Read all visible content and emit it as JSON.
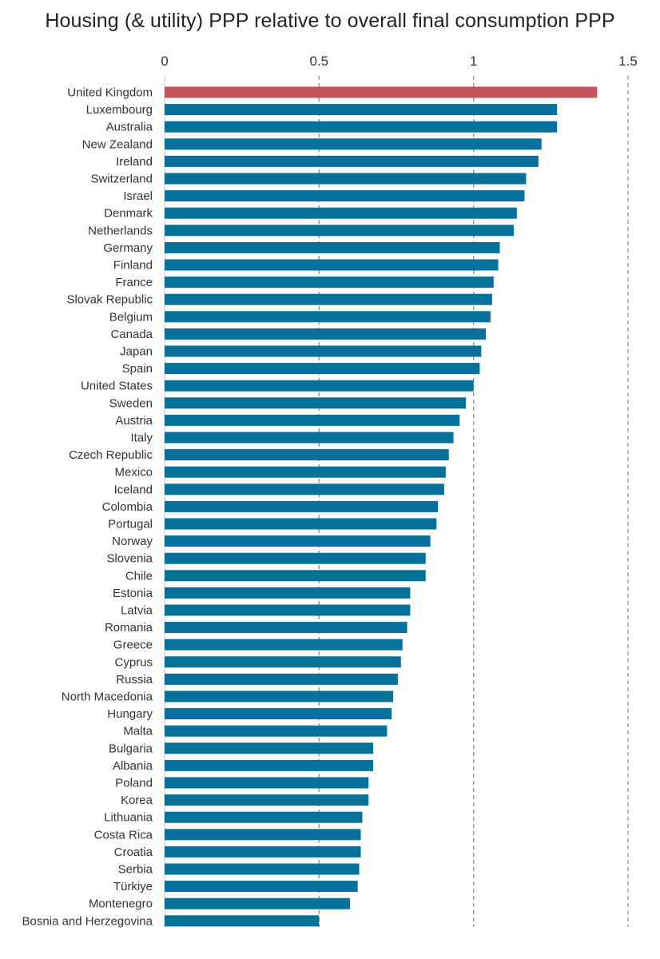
{
  "chart_data": {
    "type": "bar",
    "orientation": "horizontal",
    "title": "Housing (& utility) PPP relative to overall final consumption PPP",
    "xlabel": "",
    "ylabel": "",
    "xlim": [
      0,
      1.5
    ],
    "xticks": [
      0,
      0.5,
      1,
      1.5
    ],
    "xtick_labels": [
      "0",
      "0.5",
      "1",
      "1.5"
    ],
    "grid": "vertical dashed at 0.5, 1, 1.5",
    "colors": {
      "default": "#06719A",
      "highlight": "#C4555E"
    },
    "highlight_category": "United Kingdom",
    "categories": [
      "United Kingdom",
      "Luxembourg",
      "Australia",
      "New Zealand",
      "Ireland",
      "Switzerland",
      "Israel",
      "Denmark",
      "Netherlands",
      "Germany",
      "Finland",
      "France",
      "Slovak Republic",
      "Belgium",
      "Canada",
      "Japan",
      "Spain",
      "United States",
      "Sweden",
      "Austria",
      "Italy",
      "Czech Republic",
      "Mexico",
      "Iceland",
      "Colombia",
      "Portugal",
      "Norway",
      "Slovenia",
      "Chile",
      "Estonia",
      "Latvia",
      "Romania",
      "Greece",
      "Cyprus",
      "Russia",
      "North Macedonia",
      "Hungary",
      "Malta",
      "Bulgaria",
      "Albania",
      "Poland",
      "Korea",
      "Lithuania",
      "Costa Rica",
      "Croatia",
      "Serbia",
      "Türkiye",
      "Montenegro",
      "Bosnia and Herzegovina"
    ],
    "values": [
      1.4,
      1.27,
      1.27,
      1.22,
      1.21,
      1.17,
      1.165,
      1.14,
      1.13,
      1.085,
      1.08,
      1.065,
      1.06,
      1.055,
      1.04,
      1.025,
      1.02,
      1.0,
      0.975,
      0.955,
      0.935,
      0.92,
      0.91,
      0.905,
      0.885,
      0.88,
      0.86,
      0.845,
      0.845,
      0.795,
      0.795,
      0.785,
      0.77,
      0.765,
      0.755,
      0.74,
      0.735,
      0.72,
      0.675,
      0.675,
      0.66,
      0.66,
      0.64,
      0.635,
      0.635,
      0.63,
      0.625,
      0.6,
      0.5
    ]
  }
}
